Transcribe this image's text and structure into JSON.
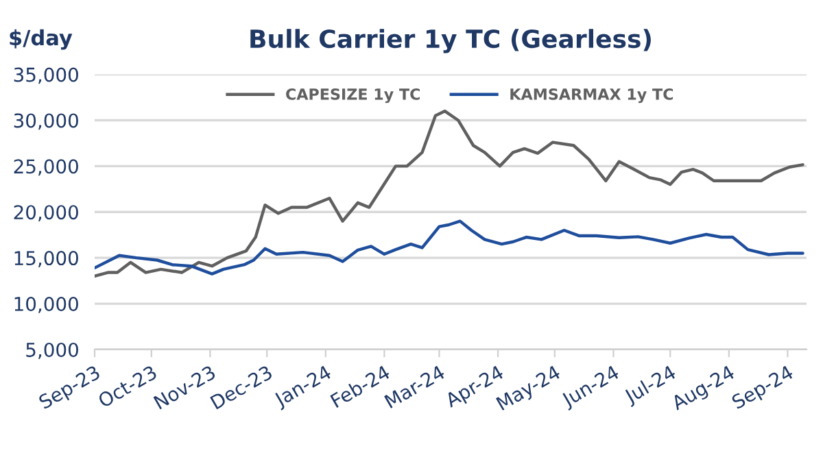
{
  "chart_data": {
    "type": "line",
    "title": "Bulk Carrier 1y TC (Gearless)",
    "ylabel": "$/day",
    "ylim": [
      5000,
      35000
    ],
    "yticks": [
      {
        "value": 5000,
        "label": "5,000"
      },
      {
        "value": 10000,
        "label": "10,000"
      },
      {
        "value": 15000,
        "label": "15,000"
      },
      {
        "value": 20000,
        "label": "20,000"
      },
      {
        "value": 25000,
        "label": "25,000"
      },
      {
        "value": 30000,
        "label": "30,000"
      },
      {
        "value": 35000,
        "label": "35,000"
      }
    ],
    "xlim": [
      "2023-09-01",
      "2024-09-11"
    ],
    "xticks": [
      {
        "value": "2023-09-01",
        "label": "Sep-23"
      },
      {
        "value": "2023-10-01",
        "label": "Oct-23"
      },
      {
        "value": "2023-11-01",
        "label": "Nov-23"
      },
      {
        "value": "2023-12-01",
        "label": "Dec-23"
      },
      {
        "value": "2024-01-01",
        "label": "Jan-24"
      },
      {
        "value": "2024-02-01",
        "label": "Feb-24"
      },
      {
        "value": "2024-03-01",
        "label": "Mar-24"
      },
      {
        "value": "2024-04-01",
        "label": "Apr-24"
      },
      {
        "value": "2024-05-01",
        "label": "May-24"
      },
      {
        "value": "2024-06-01",
        "label": "Jun-24"
      },
      {
        "value": "2024-07-01",
        "label": "Jul-24"
      },
      {
        "value": "2024-08-01",
        "label": "Aug-24"
      },
      {
        "value": "2024-09-01",
        "label": "Sep-24"
      }
    ],
    "grid": "y",
    "legend": "top",
    "marker": "none",
    "line_style": "solid",
    "series": [
      {
        "name": "CAPESIZE 1y TC",
        "color": "#606060",
        "x": [
          "2023-09-01",
          "2023-09-08",
          "2023-09-13",
          "2023-09-20",
          "2023-09-28",
          "2023-10-06",
          "2023-10-17",
          "2023-10-26",
          "2023-11-02",
          "2023-11-10",
          "2023-11-20",
          "2023-11-25",
          "2023-11-30",
          "2023-12-07",
          "2023-12-14",
          "2023-12-22",
          "2024-01-03",
          "2024-01-10",
          "2024-01-18",
          "2024-01-24",
          "2024-01-31",
          "2024-02-07",
          "2024-02-13",
          "2024-02-21",
          "2024-02-28",
          "2024-03-04",
          "2024-03-11",
          "2024-03-19",
          "2024-03-25",
          "2024-04-02",
          "2024-04-09",
          "2024-04-15",
          "2024-04-22",
          "2024-04-30",
          "2024-05-11",
          "2024-05-19",
          "2024-05-28",
          "2024-06-04",
          "2024-06-11",
          "2024-06-20",
          "2024-06-26",
          "2024-07-01",
          "2024-07-07",
          "2024-07-13",
          "2024-07-18",
          "2024-07-24",
          "2024-08-06",
          "2024-08-18",
          "2024-08-25",
          "2024-09-02",
          "2024-09-09"
        ],
        "values": [
          13000,
          13400,
          13400,
          14500,
          13400,
          13750,
          13400,
          14500,
          14100,
          15000,
          15750,
          17250,
          20750,
          19850,
          20500,
          20500,
          21500,
          19000,
          21000,
          20500,
          22750,
          25000,
          25000,
          26500,
          30500,
          31000,
          30000,
          27250,
          26500,
          25000,
          26500,
          26900,
          26400,
          27600,
          27250,
          25750,
          23400,
          25500,
          24750,
          23750,
          23500,
          23000,
          24350,
          24650,
          24250,
          23400,
          23400,
          23400,
          24250,
          24900,
          25150
        ]
      },
      {
        "name": "KAMSARMAX 1y TC",
        "color": "#1f4e9c",
        "x": [
          "2023-09-01",
          "2023-09-14",
          "2023-09-23",
          "2023-10-04",
          "2023-10-12",
          "2023-10-22",
          "2023-11-02",
          "2023-11-08",
          "2023-11-19",
          "2023-11-24",
          "2023-11-30",
          "2023-12-06",
          "2023-12-20",
          "2024-01-03",
          "2024-01-10",
          "2024-01-18",
          "2024-01-25",
          "2024-02-01",
          "2024-02-07",
          "2024-02-15",
          "2024-02-21",
          "2024-03-01",
          "2024-03-06",
          "2024-03-12",
          "2024-03-18",
          "2024-03-25",
          "2024-04-03",
          "2024-04-09",
          "2024-04-16",
          "2024-04-24",
          "2024-05-06",
          "2024-05-14",
          "2024-05-23",
          "2024-06-04",
          "2024-06-14",
          "2024-06-22",
          "2024-07-01",
          "2024-07-11",
          "2024-07-20",
          "2024-07-28",
          "2024-08-03",
          "2024-08-11",
          "2024-08-22",
          "2024-09-01",
          "2024-09-09"
        ],
        "values": [
          13900,
          15250,
          15000,
          14750,
          14250,
          14100,
          13250,
          13750,
          14250,
          14750,
          16000,
          15400,
          15600,
          15250,
          14600,
          15850,
          16250,
          15400,
          15900,
          16500,
          16100,
          18400,
          18600,
          19000,
          18000,
          17000,
          16500,
          16750,
          17250,
          17000,
          18000,
          17400,
          17400,
          17200,
          17300,
          17000,
          16600,
          17150,
          17550,
          17250,
          17250,
          15900,
          15350,
          15500,
          15500
        ]
      }
    ]
  }
}
